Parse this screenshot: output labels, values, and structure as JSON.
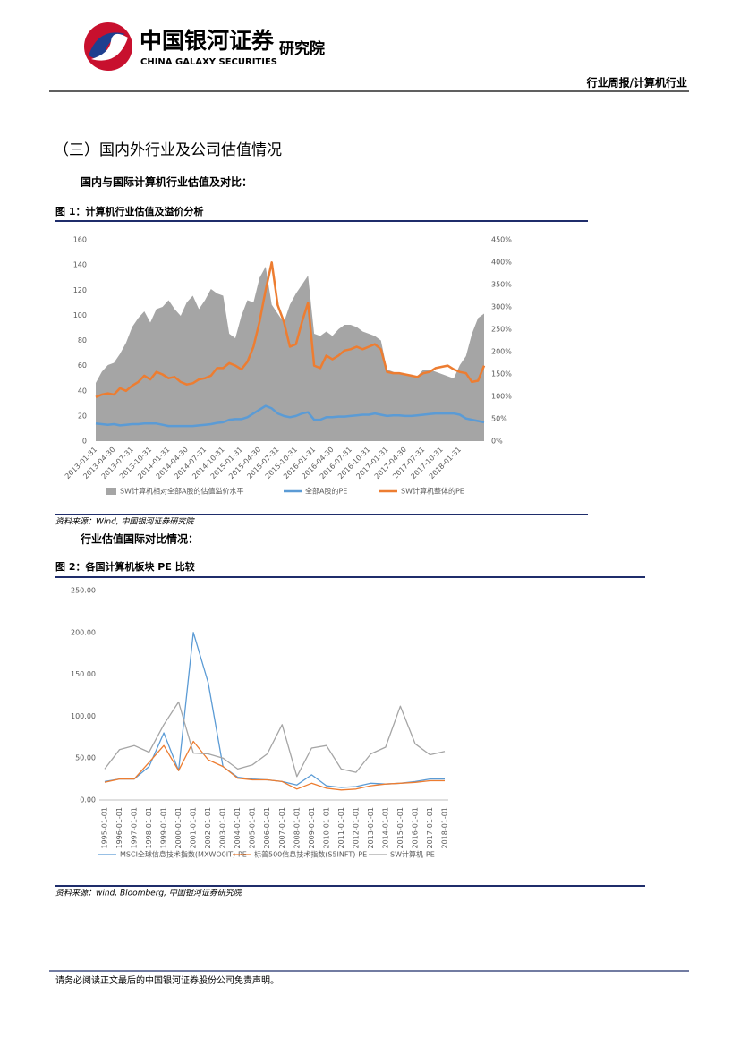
{
  "header": {
    "logo_cn": "中国银河证券",
    "logo_en": "CHINA GALAXY SECURITIES",
    "institute": "研究院",
    "report_type": "行业周报/计算机行业"
  },
  "section_title": "（三）国内外行业及公司估值情况",
  "subheading_1": "国内与国际计算机行业估值及对比：",
  "subheading_2": "行业估值国际对比情况：",
  "footer": "请务必阅读正文最后的中国银河证券股份公司免责声明。",
  "chart_data": [
    {
      "type": "line",
      "title": "图 1：计算机行业估值及溢价分析",
      "source": "资料来源：Wind, 中国银河证券研究院",
      "categories": [
        "2013-01-31",
        null,
        null,
        "2013-04-30",
        null,
        null,
        "2013-07-31",
        null,
        null,
        "2013-10-31",
        null,
        null,
        "2014-01-31",
        null,
        null,
        "2014-04-30",
        null,
        null,
        "2014-07-31",
        null,
        null,
        "2014-10-31",
        null,
        null,
        "2015-01-31",
        null,
        null,
        "2015-04-30",
        null,
        null,
        "2015-07-31",
        null,
        null,
        "2015-10-31",
        null,
        null,
        "2016-01-31",
        null,
        null,
        "2016-04-30",
        null,
        null,
        "2016-07-31",
        null,
        null,
        "2016-10-31",
        null,
        null,
        "2017-01-31",
        null,
        null,
        "2017-04-30",
        null,
        null,
        "2017-07-31",
        null,
        null,
        "2017-10-31",
        null,
        null,
        "2018-01-31",
        null,
        null,
        null,
        null
      ],
      "ylim": [
        0,
        160
      ],
      "yticks": [
        0,
        20,
        40,
        60,
        80,
        100,
        120,
        140,
        160
      ],
      "y2lim": [
        0,
        450
      ],
      "y2ticks": [
        {
          "value": 0,
          "label": "0%"
        },
        {
          "value": 50,
          "label": "50%"
        },
        {
          "value": 100,
          "label": "100%"
        },
        {
          "value": 150,
          "label": "150%"
        },
        {
          "value": 200,
          "label": "200%"
        },
        {
          "value": 250,
          "label": "250%"
        },
        {
          "value": 300,
          "label": "300%"
        },
        {
          "value": 350,
          "label": "350%"
        },
        {
          "value": 400,
          "label": "400%"
        },
        {
          "value": 450,
          "label": "450%"
        }
      ],
      "grid": false,
      "legend": "bottom",
      "series": [
        {
          "name": "SW计算机相对全部A股的估值溢价水平",
          "style": "area",
          "axis": "y2",
          "color": "#a5a5a5",
          "values": [
            130,
            155,
            170,
            175,
            195,
            220,
            255,
            275,
            290,
            265,
            295,
            300,
            315,
            295,
            280,
            310,
            325,
            295,
            315,
            340,
            330,
            325,
            240,
            230,
            280,
            315,
            310,
            365,
            390,
            305,
            285,
            265,
            305,
            330,
            350,
            370,
            240,
            235,
            245,
            235,
            250,
            260,
            260,
            255,
            245,
            240,
            235,
            225,
            160,
            155,
            150,
            150,
            145,
            145,
            160,
            160,
            155,
            150,
            145,
            140,
            170,
            190,
            240,
            275,
            285
          ]
        },
        {
          "name": "全部A股的PE",
          "style": "line",
          "color": "#5b9bd5",
          "values": [
            14,
            13.5,
            13,
            13.5,
            12.5,
            13,
            13.5,
            13.5,
            14,
            14,
            14,
            13,
            12,
            12,
            12,
            12,
            12,
            12.5,
            13,
            13.5,
            14.5,
            15,
            17,
            17.5,
            17.5,
            19,
            22,
            25,
            28,
            26,
            22,
            20,
            19,
            20,
            22,
            23,
            17,
            17,
            19,
            19,
            19.5,
            19.5,
            20,
            20.5,
            21,
            21,
            22,
            21,
            20,
            20.5,
            20.5,
            20,
            20,
            20.5,
            21,
            21.5,
            22,
            22,
            22,
            22,
            21,
            18,
            17,
            16,
            15
          ]
        },
        {
          "name": "SW计算机整体的PE",
          "style": "line",
          "color": "#ed7d31",
          "values": [
            35,
            37,
            38,
            37,
            42,
            40,
            44,
            47,
            52,
            49,
            55,
            53,
            50,
            51,
            47,
            45,
            46,
            49,
            50,
            52,
            58,
            58,
            62,
            60,
            57,
            63,
            75,
            95,
            120,
            142,
            108,
            95,
            75,
            77,
            95,
            110,
            60,
            58,
            68,
            65,
            68,
            72,
            73,
            75,
            73,
            75,
            77,
            73,
            55,
            54,
            54,
            53,
            52,
            51,
            54,
            55,
            58,
            59,
            60,
            57,
            55,
            54,
            47,
            48,
            60
          ]
        }
      ]
    },
    {
      "type": "line",
      "title": "图 2：各国计算机板块 PE 比较",
      "source": "资料来源：wind, Bloomberg, 中国银河证券研究院",
      "categories": [
        "1995-01-01",
        "1996-01-01",
        "1997-01-01",
        "1998-01-01",
        "1999-01-01",
        "2000-01-01",
        "2001-01-01",
        "2002-01-01",
        "2003-01-01",
        "2004-01-01",
        "2005-01-01",
        "2006-01-01",
        "2007-01-01",
        "2008-01-01",
        "2009-01-01",
        "2010-01-01",
        "2011-01-01",
        "2012-01-01",
        "2013-01-01",
        "2014-01-01",
        "2015-01-01",
        "2016-01-01",
        "2017-01-01",
        "2018-01-01"
      ],
      "ylim": [
        0,
        250
      ],
      "yticks": [
        {
          "value": 0,
          "label": "0.00"
        },
        {
          "value": 50,
          "label": "50.00"
        },
        {
          "value": 100,
          "label": "100.00"
        },
        {
          "value": 150,
          "label": "150.00"
        },
        {
          "value": 200,
          "label": "200.00"
        },
        {
          "value": 250,
          "label": "250.00"
        }
      ],
      "grid": false,
      "legend": "bottom",
      "series": [
        {
          "name": "MSCI全球信息技术指数(MXWO0IT)-PE",
          "style": "line",
          "color": "#5b9bd5",
          "values": [
            22,
            25,
            25,
            40,
            80,
            35,
            200,
            140,
            40,
            27,
            25,
            24,
            22,
            18,
            30,
            17,
            15,
            16,
            20,
            19,
            20,
            22,
            25,
            25
          ]
        },
        {
          "name": "标普500信息技术指数(S5INFT)-PE",
          "style": "line",
          "color": "#ed7d31",
          "values": [
            21,
            25,
            25,
            45,
            65,
            35,
            70,
            48,
            40,
            26,
            24,
            24,
            22,
            13,
            20,
            14,
            12,
            13,
            17,
            19,
            20,
            21,
            23,
            23
          ]
        },
        {
          "name": "SW计算机-PE",
          "style": "line",
          "color": "#a5a5a5",
          "values": [
            37,
            60,
            65,
            57,
            90,
            117,
            56,
            55,
            50,
            37,
            42,
            55,
            90,
            28,
            62,
            65,
            37,
            33,
            55,
            63,
            112,
            67,
            54,
            58
          ]
        }
      ]
    }
  ]
}
